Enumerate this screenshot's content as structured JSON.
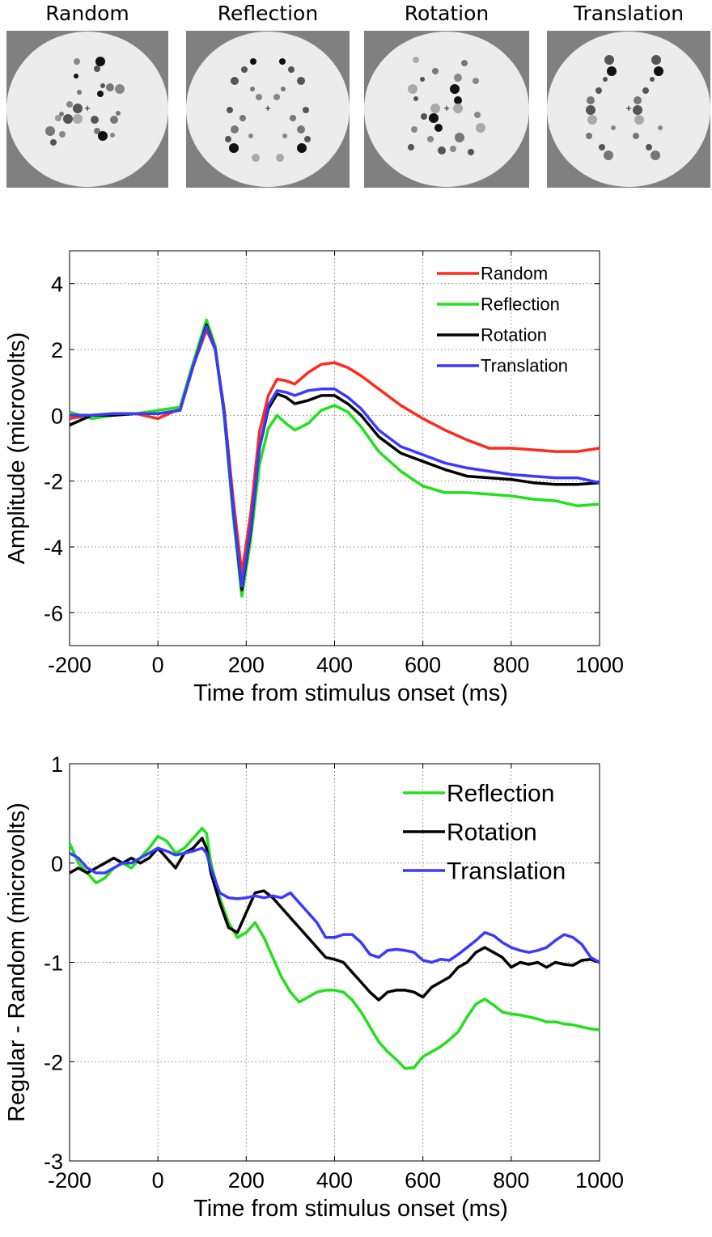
{
  "stimuli": {
    "panels": [
      {
        "title": "Random",
        "fixation": "+"
      },
      {
        "title": "Reflection",
        "fixation": "+"
      },
      {
        "title": "Rotation",
        "fixation": "+"
      },
      {
        "title": "Translation",
        "fixation": "+"
      }
    ],
    "colors": {
      "background": "#808080",
      "disc": "#ececec",
      "dot_black": "#111111",
      "dot_dark": "#555555",
      "dot_mid": "#777777",
      "dot_light": "#aaaaaa"
    }
  },
  "chart_data": [
    {
      "type": "line",
      "title": "",
      "xlabel": "Time from stimulus onset (ms)",
      "ylabel": "Amplitude (microvolts)",
      "xlim": [
        -200,
        1000
      ],
      "ylim": [
        -7,
        5
      ],
      "xticks": [
        -200,
        0,
        200,
        400,
        600,
        800,
        1000
      ],
      "yticks": [
        -6,
        -4,
        -2,
        0,
        2,
        4
      ],
      "xtick_labels": [
        "-200",
        "0",
        "200",
        "400",
        "600",
        "800",
        "1000"
      ],
      "ytick_labels": [
        "-6",
        "-4",
        "-2",
        "0",
        "2",
        "4"
      ],
      "grid": true,
      "legend_position": "top-right",
      "series": [
        {
          "name": "Random",
          "color": "#ff2a1a",
          "x": [
            -200,
            -150,
            -100,
            -50,
            0,
            50,
            80,
            110,
            130,
            150,
            170,
            190,
            210,
            230,
            250,
            270,
            290,
            310,
            340,
            370,
            400,
            430,
            460,
            500,
            550,
            600,
            650,
            700,
            750,
            800,
            850,
            900,
            950,
            1000
          ],
          "y": [
            -0.1,
            0.0,
            0.05,
            0.05,
            -0.1,
            0.2,
            1.5,
            2.6,
            2.0,
            0.2,
            -2.5,
            -4.8,
            -3.0,
            -0.5,
            0.6,
            1.1,
            1.05,
            0.95,
            1.3,
            1.55,
            1.6,
            1.45,
            1.2,
            0.8,
            0.3,
            -0.1,
            -0.45,
            -0.75,
            -1.0,
            -1.0,
            -1.05,
            -1.1,
            -1.1,
            -1.0
          ]
        },
        {
          "name": "Reflection",
          "color": "#22e01c",
          "x": [
            -200,
            -150,
            -100,
            -50,
            0,
            50,
            80,
            110,
            130,
            150,
            170,
            190,
            210,
            230,
            250,
            270,
            290,
            310,
            340,
            370,
            400,
            430,
            460,
            500,
            550,
            600,
            650,
            700,
            750,
            800,
            850,
            900,
            950,
            1000
          ],
          "y": [
            0.1,
            -0.1,
            0.0,
            0.05,
            0.15,
            0.25,
            1.6,
            2.9,
            2.1,
            0.0,
            -3.0,
            -5.5,
            -3.8,
            -1.5,
            -0.4,
            0.0,
            -0.25,
            -0.45,
            -0.25,
            0.15,
            0.3,
            0.1,
            -0.35,
            -1.1,
            -1.7,
            -2.15,
            -2.35,
            -2.35,
            -2.4,
            -2.45,
            -2.55,
            -2.6,
            -2.75,
            -2.7
          ]
        },
        {
          "name": "Rotation",
          "color": "#000000",
          "x": [
            -200,
            -150,
            -100,
            -50,
            0,
            50,
            80,
            110,
            130,
            150,
            170,
            190,
            210,
            230,
            250,
            270,
            290,
            310,
            340,
            370,
            400,
            430,
            460,
            500,
            550,
            600,
            650,
            700,
            750,
            800,
            850,
            900,
            950,
            1000
          ],
          "y": [
            -0.3,
            0.0,
            0.0,
            0.05,
            0.05,
            0.15,
            1.5,
            2.75,
            2.0,
            0.1,
            -2.8,
            -5.3,
            -3.5,
            -1.0,
            0.2,
            0.65,
            0.55,
            0.35,
            0.45,
            0.6,
            0.6,
            0.35,
            0.0,
            -0.65,
            -1.15,
            -1.4,
            -1.65,
            -1.85,
            -1.9,
            -1.95,
            -2.05,
            -2.1,
            -2.1,
            -2.05
          ]
        },
        {
          "name": "Translation",
          "color": "#3a3aff",
          "x": [
            -200,
            -150,
            -100,
            -50,
            0,
            50,
            80,
            110,
            130,
            150,
            170,
            190,
            210,
            230,
            250,
            270,
            290,
            310,
            340,
            370,
            400,
            430,
            460,
            500,
            550,
            600,
            650,
            700,
            750,
            800,
            850,
            900,
            950,
            1000
          ],
          "y": [
            0.0,
            0.0,
            0.05,
            0.05,
            0.05,
            0.15,
            1.5,
            2.7,
            2.0,
            0.1,
            -2.8,
            -5.2,
            -3.4,
            -1.0,
            0.3,
            0.75,
            0.7,
            0.6,
            0.75,
            0.8,
            0.8,
            0.55,
            0.2,
            -0.45,
            -0.95,
            -1.2,
            -1.45,
            -1.6,
            -1.7,
            -1.8,
            -1.85,
            -1.9,
            -1.9,
            -2.05
          ]
        }
      ]
    },
    {
      "type": "line",
      "title": "",
      "xlabel": "Time from stimulus onset (ms)",
      "ylabel": "Regular - Random (microvolts)",
      "xlim": [
        -200,
        1000
      ],
      "ylim": [
        -3,
        1
      ],
      "xticks": [
        -200,
        0,
        200,
        400,
        600,
        800,
        1000
      ],
      "yticks": [
        -3,
        -2,
        -1,
        0,
        1
      ],
      "xtick_labels": [
        "-200",
        "0",
        "200",
        "400",
        "600",
        "800",
        "1000"
      ],
      "ytick_labels": [
        "-3",
        "-2",
        "-1",
        "0",
        "1"
      ],
      "grid": true,
      "legend_position": "top-right",
      "series": [
        {
          "name": "Reflection",
          "color": "#22e01c",
          "x": [
            -200,
            -180,
            -160,
            -140,
            -120,
            -100,
            -80,
            -60,
            -40,
            -20,
            0,
            20,
            40,
            60,
            80,
            100,
            110,
            120,
            140,
            160,
            180,
            200,
            220,
            240,
            260,
            280,
            300,
            320,
            340,
            360,
            380,
            400,
            420,
            440,
            460,
            480,
            500,
            520,
            540,
            560,
            580,
            600,
            620,
            640,
            660,
            680,
            700,
            720,
            740,
            760,
            780,
            800,
            820,
            840,
            860,
            880,
            900,
            920,
            940,
            960,
            980,
            1000
          ],
          "y": [
            0.2,
            0.0,
            -0.1,
            -0.2,
            -0.15,
            -0.05,
            0.0,
            -0.05,
            0.05,
            0.15,
            0.27,
            0.22,
            0.1,
            0.15,
            0.25,
            0.35,
            0.3,
            0.0,
            -0.35,
            -0.6,
            -0.75,
            -0.7,
            -0.6,
            -0.75,
            -0.95,
            -1.15,
            -1.3,
            -1.4,
            -1.35,
            -1.3,
            -1.28,
            -1.28,
            -1.3,
            -1.38,
            -1.5,
            -1.65,
            -1.8,
            -1.9,
            -1.98,
            -2.07,
            -2.06,
            -1.95,
            -1.9,
            -1.85,
            -1.78,
            -1.7,
            -1.55,
            -1.42,
            -1.37,
            -1.43,
            -1.5,
            -1.52,
            -1.53,
            -1.55,
            -1.57,
            -1.6,
            -1.6,
            -1.62,
            -1.63,
            -1.65,
            -1.67,
            -1.68
          ]
        },
        {
          "name": "Rotation",
          "color": "#000000",
          "x": [
            -200,
            -180,
            -160,
            -140,
            -120,
            -100,
            -80,
            -60,
            -40,
            -20,
            0,
            20,
            40,
            60,
            80,
            100,
            110,
            120,
            140,
            160,
            180,
            200,
            220,
            240,
            260,
            280,
            300,
            320,
            340,
            360,
            380,
            400,
            420,
            440,
            460,
            480,
            500,
            520,
            540,
            560,
            580,
            600,
            620,
            640,
            660,
            680,
            700,
            720,
            740,
            760,
            780,
            800,
            820,
            840,
            860,
            880,
            900,
            920,
            940,
            960,
            980,
            1000
          ],
          "y": [
            -0.1,
            -0.05,
            -0.1,
            -0.05,
            0.0,
            0.05,
            0.0,
            0.05,
            0.0,
            0.05,
            0.15,
            0.05,
            -0.05,
            0.1,
            0.15,
            0.25,
            0.15,
            -0.1,
            -0.4,
            -0.65,
            -0.7,
            -0.5,
            -0.3,
            -0.28,
            -0.35,
            -0.45,
            -0.55,
            -0.65,
            -0.75,
            -0.85,
            -0.95,
            -0.97,
            -1.0,
            -1.1,
            -1.2,
            -1.3,
            -1.38,
            -1.3,
            -1.28,
            -1.28,
            -1.3,
            -1.35,
            -1.25,
            -1.2,
            -1.15,
            -1.05,
            -1.0,
            -0.9,
            -0.85,
            -0.9,
            -0.95,
            -1.05,
            -1.0,
            -1.02,
            -1.0,
            -1.05,
            -1.0,
            -1.02,
            -1.03,
            -0.98,
            -0.97,
            -1.0
          ]
        },
        {
          "name": "Translation",
          "color": "#3a3aff",
          "x": [
            -200,
            -180,
            -160,
            -140,
            -120,
            -100,
            -80,
            -60,
            -40,
            -20,
            0,
            20,
            40,
            60,
            80,
            100,
            110,
            120,
            140,
            160,
            180,
            200,
            220,
            240,
            260,
            280,
            300,
            320,
            340,
            360,
            380,
            400,
            420,
            440,
            460,
            480,
            500,
            520,
            540,
            560,
            580,
            600,
            620,
            640,
            660,
            680,
            700,
            720,
            740,
            760,
            780,
            800,
            820,
            840,
            860,
            880,
            900,
            920,
            940,
            960,
            980,
            1000
          ],
          "y": [
            0.1,
            0.05,
            -0.05,
            -0.1,
            -0.1,
            -0.05,
            0.0,
            0.0,
            0.05,
            0.1,
            0.15,
            0.12,
            0.08,
            0.1,
            0.12,
            0.15,
            0.1,
            -0.05,
            -0.3,
            -0.35,
            -0.36,
            -0.35,
            -0.33,
            -0.35,
            -0.33,
            -0.35,
            -0.3,
            -0.4,
            -0.5,
            -0.6,
            -0.75,
            -0.75,
            -0.72,
            -0.72,
            -0.8,
            -0.92,
            -0.95,
            -0.88,
            -0.87,
            -0.88,
            -0.9,
            -0.98,
            -1.0,
            -0.97,
            -0.98,
            -0.92,
            -0.85,
            -0.78,
            -0.7,
            -0.73,
            -0.8,
            -0.85,
            -0.88,
            -0.9,
            -0.88,
            -0.85,
            -0.78,
            -0.72,
            -0.75,
            -0.82,
            -0.95,
            -1.0
          ]
        }
      ]
    }
  ]
}
